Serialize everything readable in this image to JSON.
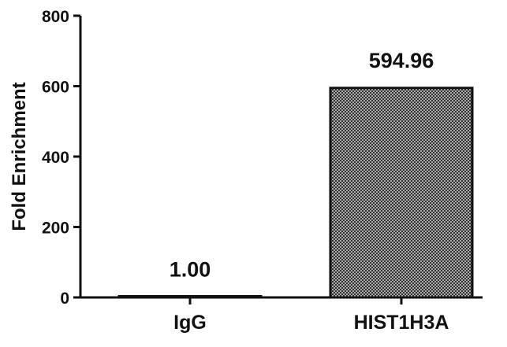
{
  "chart_data": {
    "type": "bar",
    "title": "",
    "xlabel": "",
    "ylabel": "Fold Enrichment",
    "categories": [
      "IgG",
      "HIST1H3A"
    ],
    "values": [
      1.0,
      594.96
    ],
    "data_labels": [
      "1.00",
      "594.96"
    ],
    "ylim": [
      0,
      800
    ],
    "yticks": [
      0,
      200,
      400,
      600,
      800
    ],
    "ytick_labels": [
      "0",
      "200",
      "400",
      "600",
      "800"
    ],
    "grid": false,
    "legend": "none",
    "bar_fill": "crosshatch",
    "colors": {
      "bar_edge": "#111111",
      "hatch": "#222222",
      "hatch_bg": "#d4d4d4",
      "axis": "#111111"
    }
  }
}
